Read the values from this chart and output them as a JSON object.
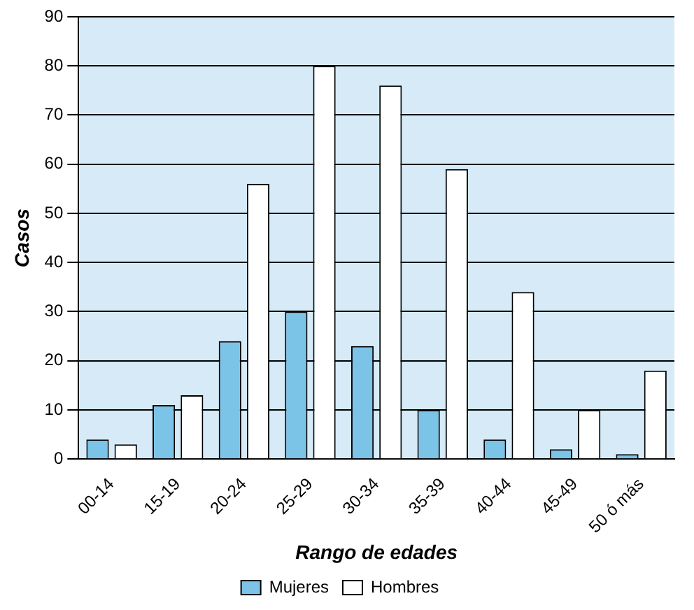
{
  "chart_data": {
    "type": "bar",
    "xlabel": "Rango de edades",
    "ylabel": "Casos",
    "categories": [
      "00-14",
      "15-19",
      "20-24",
      "25-29",
      "30-34",
      "35-39",
      "40-44",
      "45-49",
      "50 ó más"
    ],
    "series": [
      {
        "name": "Mujeres",
        "color": "#7cc3e8",
        "values": [
          4,
          11,
          24,
          30,
          23,
          10,
          4,
          2,
          1
        ]
      },
      {
        "name": "Hombres",
        "color": "#ffffff",
        "values": [
          3,
          13,
          56,
          80,
          76,
          59,
          34,
          10,
          18
        ]
      }
    ],
    "ylim": [
      0,
      90
    ],
    "yticks": [
      0,
      10,
      20,
      30,
      40,
      50,
      60,
      70,
      80,
      90
    ],
    "grid": "y",
    "legend": "bottom"
  }
}
